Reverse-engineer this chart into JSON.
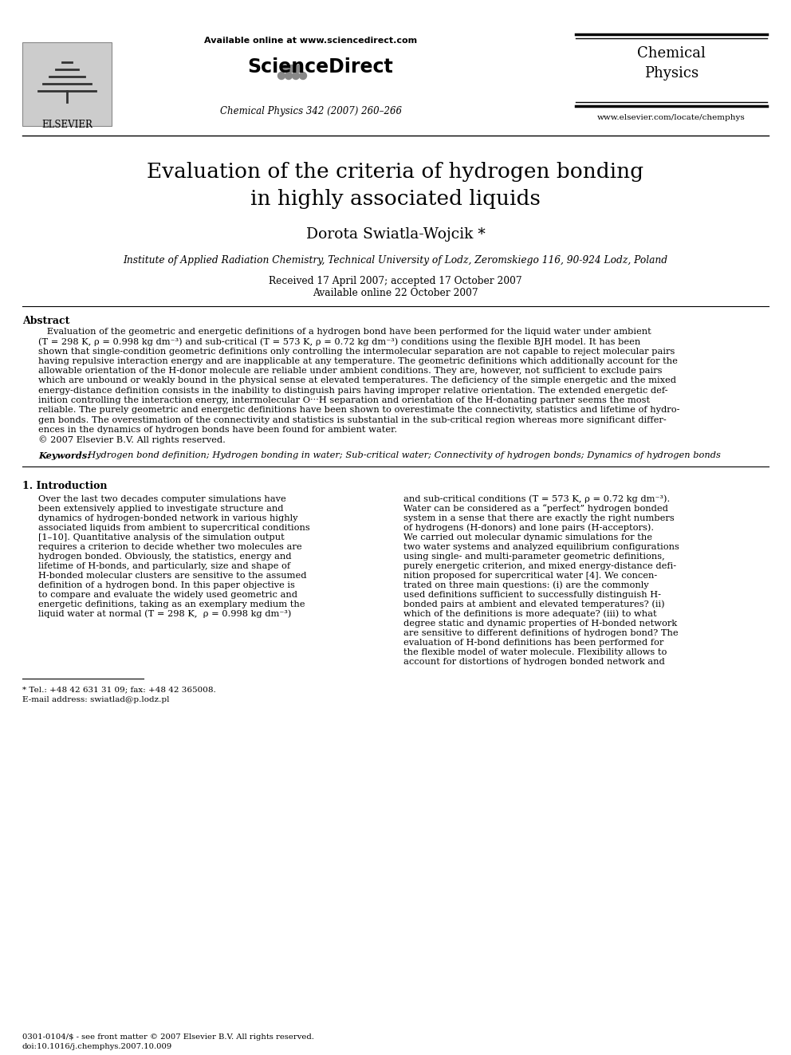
{
  "bg_color": "#ffffff",
  "title_line1": "Evaluation of the criteria of hydrogen bonding",
  "title_line2": "in highly associated liquids",
  "author": "Dorota Swiatla-Wojcik *",
  "affiliation": "Institute of Applied Radiation Chemistry, Technical University of Lodz, Zeromskiego 116, 90-924 Lodz, Poland",
  "received": "Received 17 April 2007; accepted 17 October 2007",
  "available": "Available online 22 October 2007",
  "journal_name": "Chemical Physics 342 (2007) 260–266",
  "available_online": "Available online at www.sciencedirect.com",
  "journal_title_line1": "Chemical",
  "journal_title_line2": "Physics",
  "website": "www.elsevier.com/locate/chemphys",
  "elsevier_text": "ELSEVIER",
  "abstract_title": "Abstract",
  "keywords_label": "Keywords:",
  "keywords_text": "  Hydrogen bond definition; Hydrogen bonding in water; Sub-critical water; Connectivity of hydrogen bonds; Dynamics of hydrogen bonds",
  "section1_title": "1. Introduction",
  "footnote_star": "* Tel.: +48 42 631 31 09; fax: +48 42 365008.",
  "footnote_email": "E-mail address: swiatlad@p.lodz.pl",
  "bottom_text1": "0301-0104/$ - see front matter © 2007 Elsevier B.V. All rights reserved.",
  "bottom_text2": "doi:10.1016/j.chemphys.2007.10.009",
  "abs_lines": [
    "   Evaluation of the geometric and energetic definitions of a hydrogen bond have been performed for the liquid water under ambient",
    "(T = 298 K, ρ = 0.998 kg dm⁻³) and sub-critical (T = 573 K, ρ = 0.72 kg dm⁻³) conditions using the flexible BJH model. It has been",
    "shown that single-condition geometric definitions only controlling the intermolecular separation are not capable to reject molecular pairs",
    "having repulsive interaction energy and are inapplicable at any temperature. The geometric definitions which additionally account for the",
    "allowable orientation of the H-donor molecule are reliable under ambient conditions. They are, however, not sufficient to exclude pairs",
    "which are unbound or weakly bound in the physical sense at elevated temperatures. The deficiency of the simple energetic and the mixed",
    "energy-distance definition consists in the inability to distinguish pairs having improper relative orientation. The extended energetic def-",
    "inition controlling the interaction energy, intermolecular O···H separation and orientation of the H-donating partner seems the most",
    "reliable. The purely geometric and energetic definitions have been shown to overestimate the connectivity, statistics and lifetime of hydro-",
    "gen bonds. The overestimation of the connectivity and statistics is substantial in the sub-critical region whereas more significant differ-",
    "ences in the dynamics of hydrogen bonds have been found for ambient water.",
    "© 2007 Elsevier B.V. All rights reserved."
  ],
  "col1_lines": [
    "Over the last two decades computer simulations have",
    "been extensively applied to investigate structure and",
    "dynamics of hydrogen-bonded network in various highly",
    "associated liquids from ambient to supercritical conditions",
    "[1–10]. Quantitative analysis of the simulation output",
    "requires a criterion to decide whether two molecules are",
    "hydrogen bonded. Obviously, the statistics, energy and",
    "lifetime of H-bonds, and particularly, size and shape of",
    "H-bonded molecular clusters are sensitive to the assumed",
    "definition of a hydrogen bond. In this paper objective is",
    "to compare and evaluate the widely used geometric and",
    "energetic definitions, taking as an exemplary medium the",
    "liquid water at normal (T = 298 K,  ρ = 0.998 kg dm⁻³)"
  ],
  "col2_lines": [
    "and sub-critical conditions (T = 573 K, ρ = 0.72 kg dm⁻³).",
    "Water can be considered as a “perfect” hydrogen bonded",
    "system in a sense that there are exactly the right numbers",
    "of hydrogens (H-donors) and lone pairs (H-acceptors).",
    "We carried out molecular dynamic simulations for the",
    "two water systems and analyzed equilibrium configurations",
    "using single- and multi-parameter geometric definitions,",
    "purely energetic criterion, and mixed energy-distance defi-",
    "nition proposed for supercritical water [4]. We concen-",
    "trated on three main questions: (i) are the commonly",
    "used definitions sufficient to successfully distinguish H-",
    "bonded pairs at ambient and elevated temperatures? (ii)",
    "which of the definitions is more adequate? (iii) to what",
    "degree static and dynamic properties of H-bonded network",
    "are sensitive to different definitions of hydrogen bond? The",
    "evaluation of H-bond definitions has been performed for",
    "the flexible model of water molecule. Flexibility allows to",
    "account for distortions of hydrogen bonded network and"
  ]
}
